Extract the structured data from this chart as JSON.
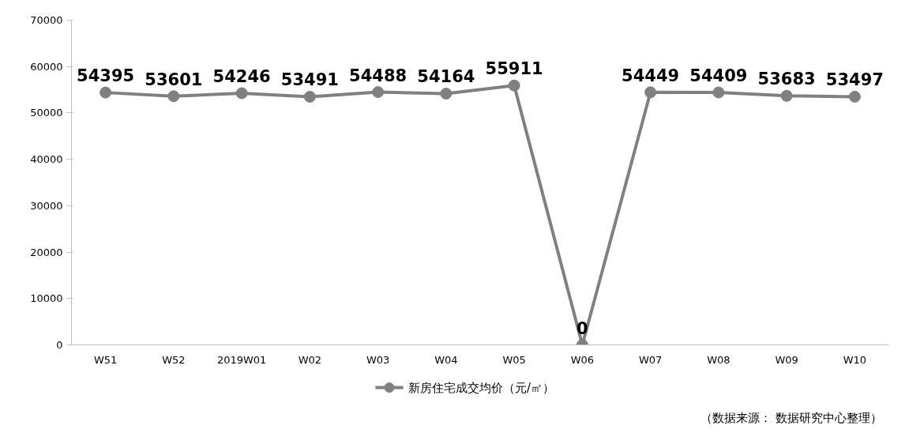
{
  "chart_data": {
    "type": "line",
    "categories": [
      "W51",
      "W52",
      "2019W01",
      "W02",
      "W03",
      "W04",
      "W05",
      "W06",
      "W07",
      "W08",
      "W09",
      "W10"
    ],
    "series": [
      {
        "name": "新房住宅成交均价（元/㎡）",
        "color": "#808080",
        "values": [
          54395,
          53601,
          54246,
          53491,
          54488,
          54164,
          55911,
          0,
          54449,
          54409,
          53683,
          53497
        ]
      }
    ],
    "ylim": [
      0,
      70000
    ],
    "yticks": [
      0,
      10000,
      20000,
      30000,
      40000,
      50000,
      60000,
      70000
    ],
    "data_labels": true,
    "marker": "circle",
    "line_style": "solid",
    "grid": false,
    "legend": "bottom",
    "annotations": [
      "（数据来源： 数据研究中心整理）"
    ]
  }
}
